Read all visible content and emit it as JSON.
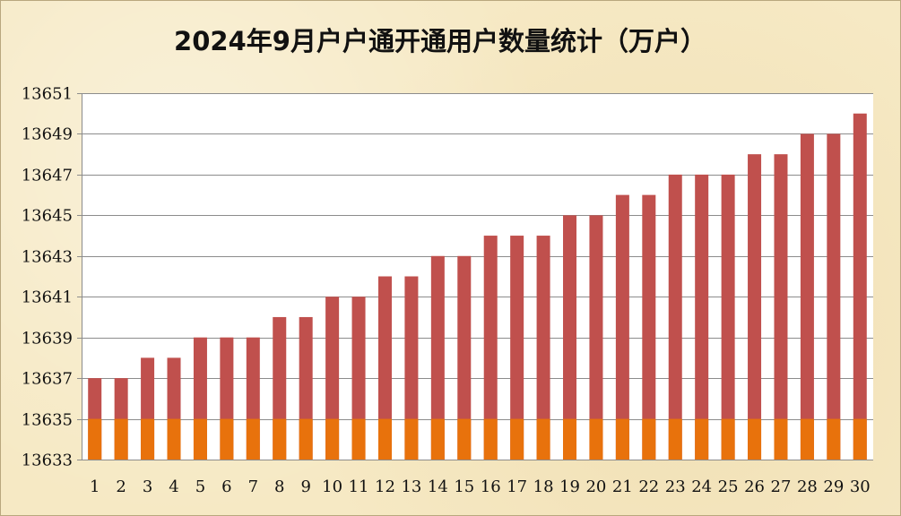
{
  "chart_data": {
    "type": "bar",
    "title": "2024年9月户户通开通用户数量统计（万户）",
    "categories": [
      "1",
      "2",
      "3",
      "4",
      "5",
      "6",
      "7",
      "8",
      "9",
      "10",
      "11",
      "12",
      "13",
      "14",
      "15",
      "16",
      "17",
      "18",
      "19",
      "20",
      "21",
      "22",
      "23",
      "24",
      "25",
      "26",
      "27",
      "28",
      "29",
      "30"
    ],
    "series": [
      {
        "color": "#e8720c",
        "values": [
          13635,
          13635,
          13635,
          13635,
          13635,
          13635,
          13635,
          13635,
          13635,
          13635,
          13635,
          13635,
          13635,
          13635,
          13635,
          13635,
          13635,
          13635,
          13635,
          13635,
          13635,
          13635,
          13635,
          13635,
          13635,
          13635,
          13635,
          13635,
          13635,
          13635
        ]
      },
      {
        "color": "#c0504d",
        "values": [
          13637,
          13637,
          13638,
          13638,
          13639,
          13639,
          13639,
          13640,
          13640,
          13641,
          13641,
          13642,
          13642,
          13643,
          13643,
          13644,
          13644,
          13644,
          13645,
          13645,
          13646,
          13646,
          13647,
          13647,
          13647,
          13648,
          13648,
          13649,
          13649,
          13650
        ]
      }
    ],
    "stacking": "overlay",
    "ylim": [
      13633,
      13651
    ],
    "yticks": [
      13633,
      13635,
      13637,
      13639,
      13641,
      13643,
      13645,
      13647,
      13649,
      13651
    ],
    "xlabel": "",
    "ylabel": "",
    "grid": true,
    "legend": "none",
    "plot_background": "#ffffff",
    "gridline_color": "#8c8c8c"
  }
}
